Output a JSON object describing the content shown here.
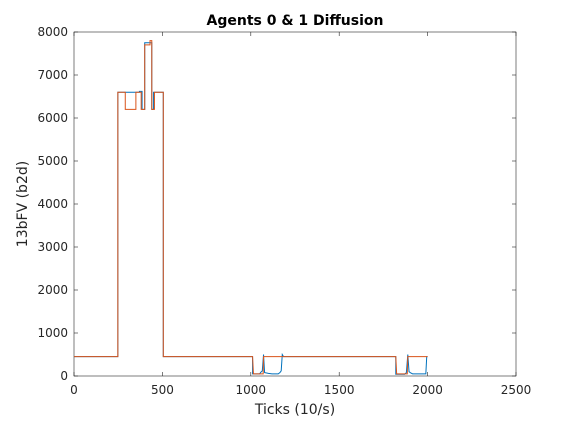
{
  "chart_data": {
    "type": "line",
    "title": "Agents 0 & 1 Diffusion",
    "xlabel": "Ticks (10/s)",
    "ylabel": "13bFV (b2d)",
    "xlim": [
      0,
      2500
    ],
    "ylim": [
      0,
      8000
    ],
    "xticks": [
      0,
      500,
      1000,
      1500,
      2000,
      2500
    ],
    "yticks": [
      0,
      1000,
      2000,
      3000,
      4000,
      5000,
      6000,
      7000,
      8000
    ],
    "grid": false,
    "series": [
      {
        "color": "#0072BD",
        "points": [
          [
            0,
            450
          ],
          [
            248,
            450
          ],
          [
            248,
            6600
          ],
          [
            290,
            6600
          ],
          [
            290,
            6600
          ],
          [
            370,
            6600
          ],
          [
            370,
            6620
          ],
          [
            385,
            6620
          ],
          [
            385,
            6200
          ],
          [
            400,
            6200
          ],
          [
            400,
            7750
          ],
          [
            430,
            7750
          ],
          [
            430,
            7750
          ],
          [
            440,
            7750
          ],
          [
            440,
            6200
          ],
          [
            450,
            6200
          ],
          [
            450,
            6600
          ],
          [
            505,
            6600
          ],
          [
            505,
            450
          ],
          [
            1010,
            450
          ],
          [
            1010,
            50
          ],
          [
            1050,
            50
          ],
          [
            1055,
            80
          ],
          [
            1065,
            120
          ],
          [
            1072,
            500
          ],
          [
            1078,
            80
          ],
          [
            1100,
            60
          ],
          [
            1120,
            50
          ],
          [
            1155,
            50
          ],
          [
            1165,
            80
          ],
          [
            1172,
            120
          ],
          [
            1178,
            500
          ],
          [
            1185,
            450
          ],
          [
            1820,
            450
          ],
          [
            1820,
            40
          ],
          [
            1870,
            40
          ],
          [
            1880,
            80
          ],
          [
            1888,
            500
          ],
          [
            1895,
            100
          ],
          [
            1905,
            70
          ],
          [
            1915,
            50
          ],
          [
            1990,
            50
          ],
          [
            1995,
            450
          ],
          [
            2000,
            450
          ]
        ]
      },
      {
        "color": "#D95319",
        "points": [
          [
            0,
            450
          ],
          [
            248,
            450
          ],
          [
            248,
            6600
          ],
          [
            290,
            6600
          ],
          [
            290,
            6200
          ],
          [
            350,
            6200
          ],
          [
            350,
            6600
          ],
          [
            380,
            6600
          ],
          [
            380,
            6200
          ],
          [
            400,
            6200
          ],
          [
            400,
            7700
          ],
          [
            430,
            7700
          ],
          [
            430,
            7800
          ],
          [
            440,
            7800
          ],
          [
            440,
            6200
          ],
          [
            455,
            6200
          ],
          [
            455,
            6600
          ],
          [
            505,
            6600
          ],
          [
            505,
            450
          ],
          [
            1000,
            450
          ],
          [
            1000,
            450
          ],
          [
            1010,
            450
          ],
          [
            1015,
            50
          ],
          [
            1070,
            50
          ],
          [
            1072,
            450
          ],
          [
            1078,
            450
          ],
          [
            1100,
            450
          ],
          [
            1180,
            450
          ],
          [
            1180,
            450
          ],
          [
            1820,
            450
          ],
          [
            1825,
            50
          ],
          [
            1885,
            50
          ],
          [
            1888,
            450
          ],
          [
            2000,
            450
          ]
        ]
      }
    ]
  }
}
